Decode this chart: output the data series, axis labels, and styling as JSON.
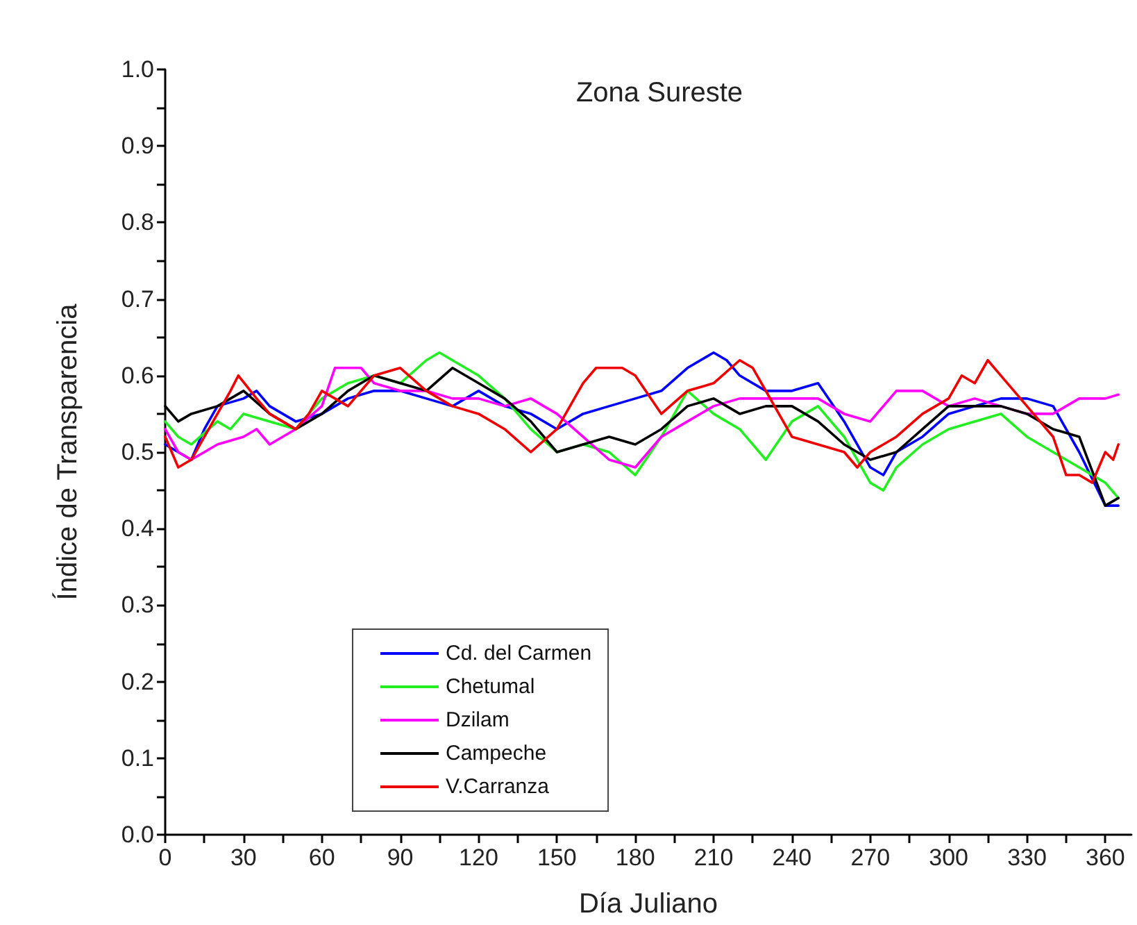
{
  "chart_data": {
    "type": "line",
    "title": "Zona Sureste",
    "xlabel": "Día Juliano",
    "ylabel": "Índice de Transparencia",
    "xlim": [
      0,
      370
    ],
    "ylim": [
      0,
      1
    ],
    "xticks": [
      0,
      {
        "value": 15,
        "label": null
      },
      30,
      {
        "value": 45,
        "label": null
      },
      60,
      {
        "value": 75,
        "label": null
      },
      90,
      {
        "value": 105,
        "label": null
      },
      120,
      {
        "value": 135,
        "label": null
      },
      150,
      {
        "value": 165,
        "label": null
      },
      180,
      {
        "value": 195,
        "label": null
      },
      210,
      {
        "value": 225,
        "label": null
      },
      240,
      {
        "value": 255,
        "label": null
      },
      270,
      {
        "value": 285,
        "label": null
      },
      300,
      {
        "value": 315,
        "label": null
      },
      330,
      {
        "value": 345,
        "label": null
      },
      360
    ],
    "yticks": [
      {
        "value": 0,
        "label": "0.0"
      },
      {
        "value": 0.05,
        "label": null
      },
      0.1,
      {
        "value": 0.15,
        "label": null
      },
      0.2,
      {
        "value": 0.25,
        "label": null
      },
      0.3,
      {
        "value": 0.35,
        "label": null
      },
      0.4,
      {
        "value": 0.45,
        "label": null
      },
      0.5,
      {
        "value": 0.55,
        "label": null
      },
      0.6,
      {
        "value": 0.65,
        "label": null
      },
      0.7,
      {
        "value": 0.75,
        "label": null
      },
      0.8,
      {
        "value": 0.85,
        "label": null
      },
      0.9,
      {
        "value": 0.95,
        "label": null
      },
      {
        "value": 1,
        "label": "1.0"
      }
    ],
    "grid": false,
    "legend": "bottom left",
    "marker": "none",
    "line_style": "solid",
    "series": [
      {
        "name": "Cd. del Carmen",
        "color": "#0000ff",
        "x": [
          0,
          5,
          10,
          15,
          20,
          30,
          35,
          40,
          50,
          60,
          70,
          80,
          90,
          100,
          110,
          120,
          130,
          140,
          150,
          160,
          170,
          180,
          190,
          200,
          210,
          215,
          220,
          230,
          240,
          250,
          260,
          270,
          275,
          280,
          290,
          300,
          310,
          320,
          330,
          340,
          350,
          360,
          365
        ],
        "values": [
          0.51,
          0.5,
          0.49,
          0.53,
          0.56,
          0.57,
          0.58,
          0.56,
          0.54,
          0.55,
          0.57,
          0.58,
          0.58,
          0.57,
          0.56,
          0.58,
          0.56,
          0.55,
          0.53,
          0.55,
          0.56,
          0.57,
          0.58,
          0.61,
          0.63,
          0.62,
          0.6,
          0.58,
          0.58,
          0.59,
          0.54,
          0.48,
          0.47,
          0.5,
          0.52,
          0.55,
          0.56,
          0.57,
          0.57,
          0.56,
          0.5,
          0.43,
          0.43
        ]
      },
      {
        "name": "Chetumal",
        "color": "#22ee22",
        "x": [
          0,
          5,
          10,
          20,
          25,
          30,
          40,
          50,
          60,
          70,
          80,
          90,
          100,
          105,
          110,
          120,
          130,
          140,
          150,
          160,
          170,
          180,
          190,
          200,
          210,
          220,
          230,
          240,
          250,
          260,
          270,
          275,
          280,
          290,
          300,
          310,
          320,
          330,
          340,
          350,
          360,
          365
        ],
        "values": [
          0.54,
          0.52,
          0.51,
          0.54,
          0.53,
          0.55,
          0.54,
          0.53,
          0.57,
          0.59,
          0.6,
          0.59,
          0.62,
          0.63,
          0.62,
          0.6,
          0.57,
          0.53,
          0.5,
          0.51,
          0.5,
          0.47,
          0.52,
          0.58,
          0.55,
          0.53,
          0.49,
          0.54,
          0.56,
          0.52,
          0.46,
          0.45,
          0.48,
          0.51,
          0.53,
          0.54,
          0.55,
          0.52,
          0.5,
          0.48,
          0.46,
          0.44
        ]
      },
      {
        "name": "Dzilam",
        "color": "#ff00ff",
        "x": [
          0,
          5,
          10,
          20,
          30,
          35,
          40,
          45,
          50,
          60,
          65,
          70,
          75,
          80,
          90,
          100,
          110,
          120,
          130,
          140,
          150,
          160,
          170,
          180,
          190,
          200,
          210,
          220,
          230,
          240,
          250,
          260,
          270,
          280,
          290,
          300,
          310,
          320,
          330,
          340,
          350,
          360,
          365
        ],
        "values": [
          0.53,
          0.5,
          0.49,
          0.51,
          0.52,
          0.53,
          0.51,
          0.52,
          0.53,
          0.56,
          0.61,
          0.61,
          0.61,
          0.59,
          0.58,
          0.58,
          0.57,
          0.57,
          0.56,
          0.57,
          0.55,
          0.52,
          0.49,
          0.48,
          0.52,
          0.54,
          0.56,
          0.57,
          0.57,
          0.57,
          0.57,
          0.55,
          0.54,
          0.58,
          0.58,
          0.56,
          0.57,
          0.56,
          0.55,
          0.55,
          0.57,
          0.57,
          0.575
        ]
      },
      {
        "name": "Campeche",
        "color": "#000000",
        "x": [
          0,
          5,
          10,
          20,
          25,
          30,
          40,
          50,
          60,
          70,
          80,
          90,
          100,
          110,
          120,
          130,
          140,
          150,
          160,
          170,
          180,
          190,
          200,
          210,
          220,
          230,
          240,
          250,
          260,
          270,
          280,
          290,
          300,
          310,
          320,
          330,
          340,
          350,
          360,
          365
        ],
        "values": [
          0.56,
          0.54,
          0.55,
          0.56,
          0.57,
          0.58,
          0.55,
          0.53,
          0.55,
          0.58,
          0.6,
          0.59,
          0.58,
          0.61,
          0.59,
          0.57,
          0.54,
          0.5,
          0.51,
          0.52,
          0.51,
          0.53,
          0.56,
          0.57,
          0.55,
          0.56,
          0.56,
          0.54,
          0.51,
          0.49,
          0.5,
          0.53,
          0.56,
          0.56,
          0.56,
          0.55,
          0.53,
          0.52,
          0.43,
          0.44
        ]
      },
      {
        "name": "V.Carranza",
        "color": "#ee0000",
        "x": [
          0,
          5,
          10,
          20,
          25,
          28,
          35,
          40,
          50,
          55,
          60,
          70,
          80,
          90,
          100,
          110,
          120,
          130,
          140,
          150,
          160,
          165,
          175,
          180,
          190,
          200,
          210,
          220,
          225,
          230,
          240,
          250,
          260,
          265,
          270,
          280,
          290,
          300,
          305,
          310,
          315,
          320,
          330,
          340,
          345,
          350,
          355,
          360,
          363,
          365
        ],
        "values": [
          0.52,
          0.48,
          0.49,
          0.55,
          0.58,
          0.6,
          0.57,
          0.55,
          0.53,
          0.55,
          0.58,
          0.56,
          0.6,
          0.61,
          0.58,
          0.56,
          0.55,
          0.53,
          0.5,
          0.53,
          0.59,
          0.61,
          0.61,
          0.6,
          0.55,
          0.58,
          0.59,
          0.62,
          0.61,
          0.58,
          0.52,
          0.51,
          0.5,
          0.48,
          0.5,
          0.52,
          0.55,
          0.57,
          0.6,
          0.59,
          0.62,
          0.6,
          0.56,
          0.52,
          0.47,
          0.47,
          0.46,
          0.5,
          0.49,
          0.51
        ]
      }
    ]
  }
}
